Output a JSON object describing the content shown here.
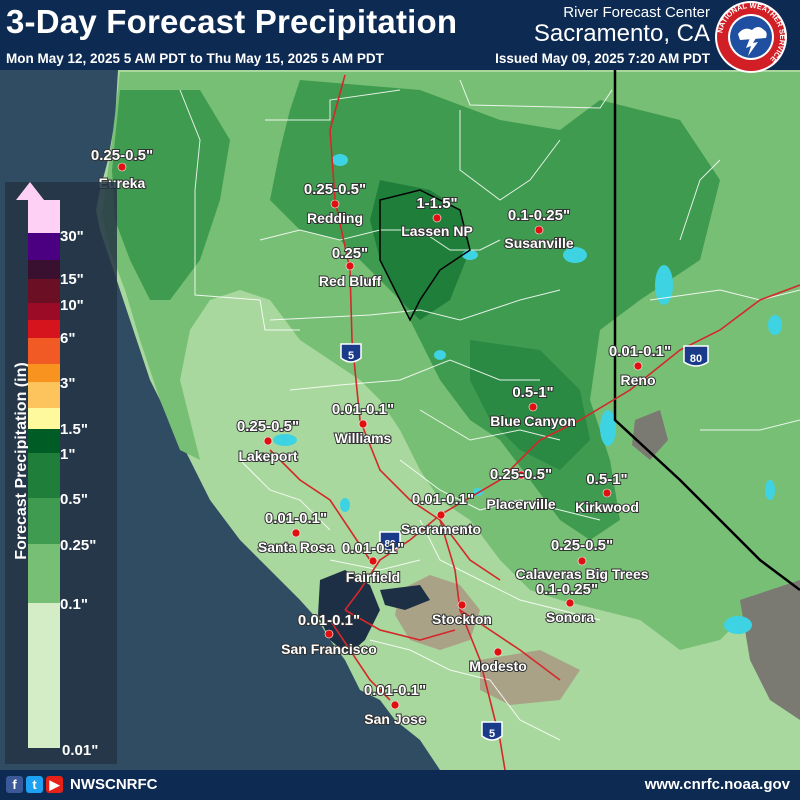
{
  "header": {
    "title": "3-Day Forecast Precipitation",
    "center_line1": "River Forecast Center",
    "center_line2": "Sacramento, CA",
    "valid_period": "Mon May 12, 2025 5 AM PDT to Thu May 15, 2025 5 AM PDT",
    "issued": "Issued May 09, 2025 7:20 AM PDT",
    "logo_text": "NATIONAL WEATHER SERVICE"
  },
  "legend": {
    "title": "Forecast Precipitation (in)",
    "labels": [
      "30\"",
      "15\"",
      "10\"",
      "6\"",
      "3\"",
      "1.5\"",
      "1\"",
      "0.5\"",
      "0.25\"",
      "0.1\"",
      "0.01\""
    ],
    "colors": {
      "above_30": "#ffd0f6",
      "b15_30": "#4b0082",
      "b10_15": "#3a1030",
      "b8_10": "#6b0f25",
      "b6_8": "#9b0b26",
      "b4_6": "#d6141e",
      "b3_4": "#f15a24",
      "b2_3": "#f7931e",
      "b1_5_2": "#fdc35c",
      "b1_1_5": "#fef99c",
      "b0_75_1": "#005c25",
      "b0_5_0_75": "#1f7f3a",
      "b0_25_0_5": "#3e9b4f",
      "b0_1_0_25": "#78bf76",
      "b0_05_0_1": "#a8d89d",
      "b0_01_0_05": "#d5edc7"
    }
  },
  "map": {
    "colors": {
      "ocean": "#2f4c62",
      "bay": "#1d2f44",
      "lake": "#3ed3e3",
      "terrain": "#7a7a72",
      "dry": "#a89c84",
      "roads": "#d4282a",
      "borders": "#ffffff"
    },
    "interstates": [
      "5",
      "80",
      "80",
      "5"
    ],
    "cities": [
      {
        "name": "Eureka",
        "value": "0.25-0.5\""
      },
      {
        "name": "Redding",
        "value": "0.25-0.5\""
      },
      {
        "name": "Lassen NP",
        "value": "1-1.5\""
      },
      {
        "name": "Susanville",
        "value": "0.1-0.25\""
      },
      {
        "name": "Red Bluff",
        "value": "0.25\""
      },
      {
        "name": "Reno",
        "value": "0.01-0.1\""
      },
      {
        "name": "Blue Canyon",
        "value": "0.5-1\""
      },
      {
        "name": "Lakeport",
        "value": "0.25-0.5\""
      },
      {
        "name": "Williams",
        "value": "0.01-0.1\""
      },
      {
        "name": "Placerville",
        "value": "0.25-0.5\""
      },
      {
        "name": "Kirkwood",
        "value": "0.5-1\""
      },
      {
        "name": "Sacramento",
        "value": "0.01-0.1\""
      },
      {
        "name": "Santa Rosa",
        "value": "0.01-0.1\""
      },
      {
        "name": "Fairfield",
        "value": "0.01-0.1\""
      },
      {
        "name": "Calaveras Big Trees",
        "value": "0.25-0.5\""
      },
      {
        "name": "Sonora",
        "value": "0.1-0.25\""
      },
      {
        "name": "Stockton",
        "value": ""
      },
      {
        "name": "San Francisco",
        "value": "0.01-0.1\""
      },
      {
        "name": "Modesto",
        "value": ""
      },
      {
        "name": "San Jose",
        "value": "0.01-0.1\""
      }
    ]
  },
  "footer": {
    "handle": "NWSCNRFC",
    "url": "www.cnrfc.noaa.gov",
    "social_icons": [
      "facebook-icon",
      "twitter-icon",
      "youtube-icon"
    ]
  }
}
